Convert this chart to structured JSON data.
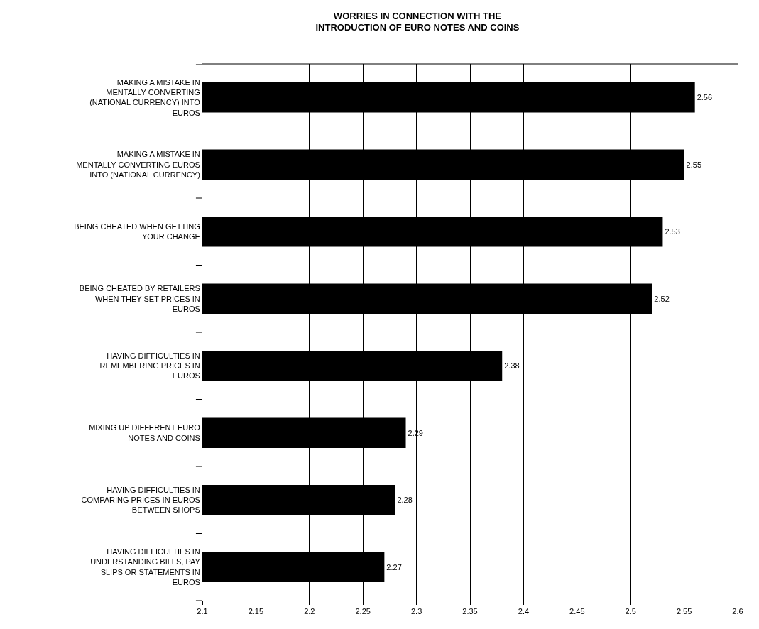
{
  "chart_data": {
    "type": "bar",
    "orientation": "horizontal",
    "title": "WORRIES IN CONNECTION WITH THE INTRODUCTION OF EURO NOTES AND COINS",
    "categories": [
      "MAKING A MISTAKE IN MENTALLY CONVERTING (NATIONAL CURRENCY) INTO EUROS",
      "MAKING A MISTAKE IN MENTALLY CONVERTING EUROS INTO (NATIONAL CURRENCY)",
      "BEING CHEATED WHEN GETTING YOUR CHANGE",
      "BEING CHEATED BY RETAILERS WHEN THEY SET PRICES IN EUROS",
      "HAVING DIFFICULTIES IN REMEMBERING PRICES IN EUROS",
      "MIXING UP DIFFERENT EURO NOTES AND COINS",
      "HAVING DIFFICULTIES IN COMPARING PRICES IN EUROS BETWEEN SHOPS",
      "HAVING DIFFICULTIES IN UNDERSTANDING BILLS, PAY SLIPS OR STATEMENTS IN EUROS"
    ],
    "values": [
      2.56,
      2.55,
      2.53,
      2.52,
      2.38,
      2.29,
      2.28,
      2.27
    ],
    "color": "#000000",
    "data_labels": true,
    "xlim": [
      2.1,
      2.6
    ],
    "xticks": [
      2.1,
      2.15,
      2.2,
      2.25,
      2.3,
      2.35,
      2.4,
      2.45,
      2.5,
      2.55,
      2.6
    ],
    "grid": "x",
    "legend": false
  }
}
